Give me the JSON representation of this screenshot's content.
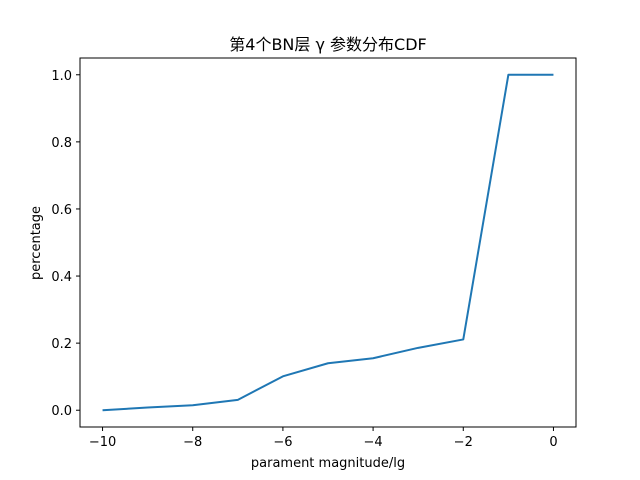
{
  "chart_data": {
    "type": "line",
    "title": "第4个BN层 γ 参数分布CDF",
    "xlabel": "parament magnitude/lg",
    "ylabel": "percentage",
    "xlim": [
      -10.5,
      0.5
    ],
    "ylim": [
      -0.05,
      1.05
    ],
    "xticks": [
      -10,
      -8,
      -6,
      -4,
      -2,
      0
    ],
    "xtick_labels": [
      "−10",
      "−8",
      "−6",
      "−4",
      "−2",
      "0"
    ],
    "yticks": [
      0.0,
      0.2,
      0.4,
      0.6,
      0.8,
      1.0
    ],
    "ytick_labels": [
      "0.0",
      "0.2",
      "0.4",
      "0.6",
      "0.8",
      "1.0"
    ],
    "grid": false,
    "color": "#1f77b4",
    "series": [
      {
        "x": [
          -10,
          -9,
          -8,
          -7,
          -6,
          -5,
          -4,
          -3,
          -2,
          -1,
          0
        ],
        "values": [
          0.0,
          0.008,
          0.015,
          0.031,
          0.101,
          0.14,
          0.155,
          0.186,
          0.211,
          1.0,
          1.0
        ]
      }
    ]
  }
}
